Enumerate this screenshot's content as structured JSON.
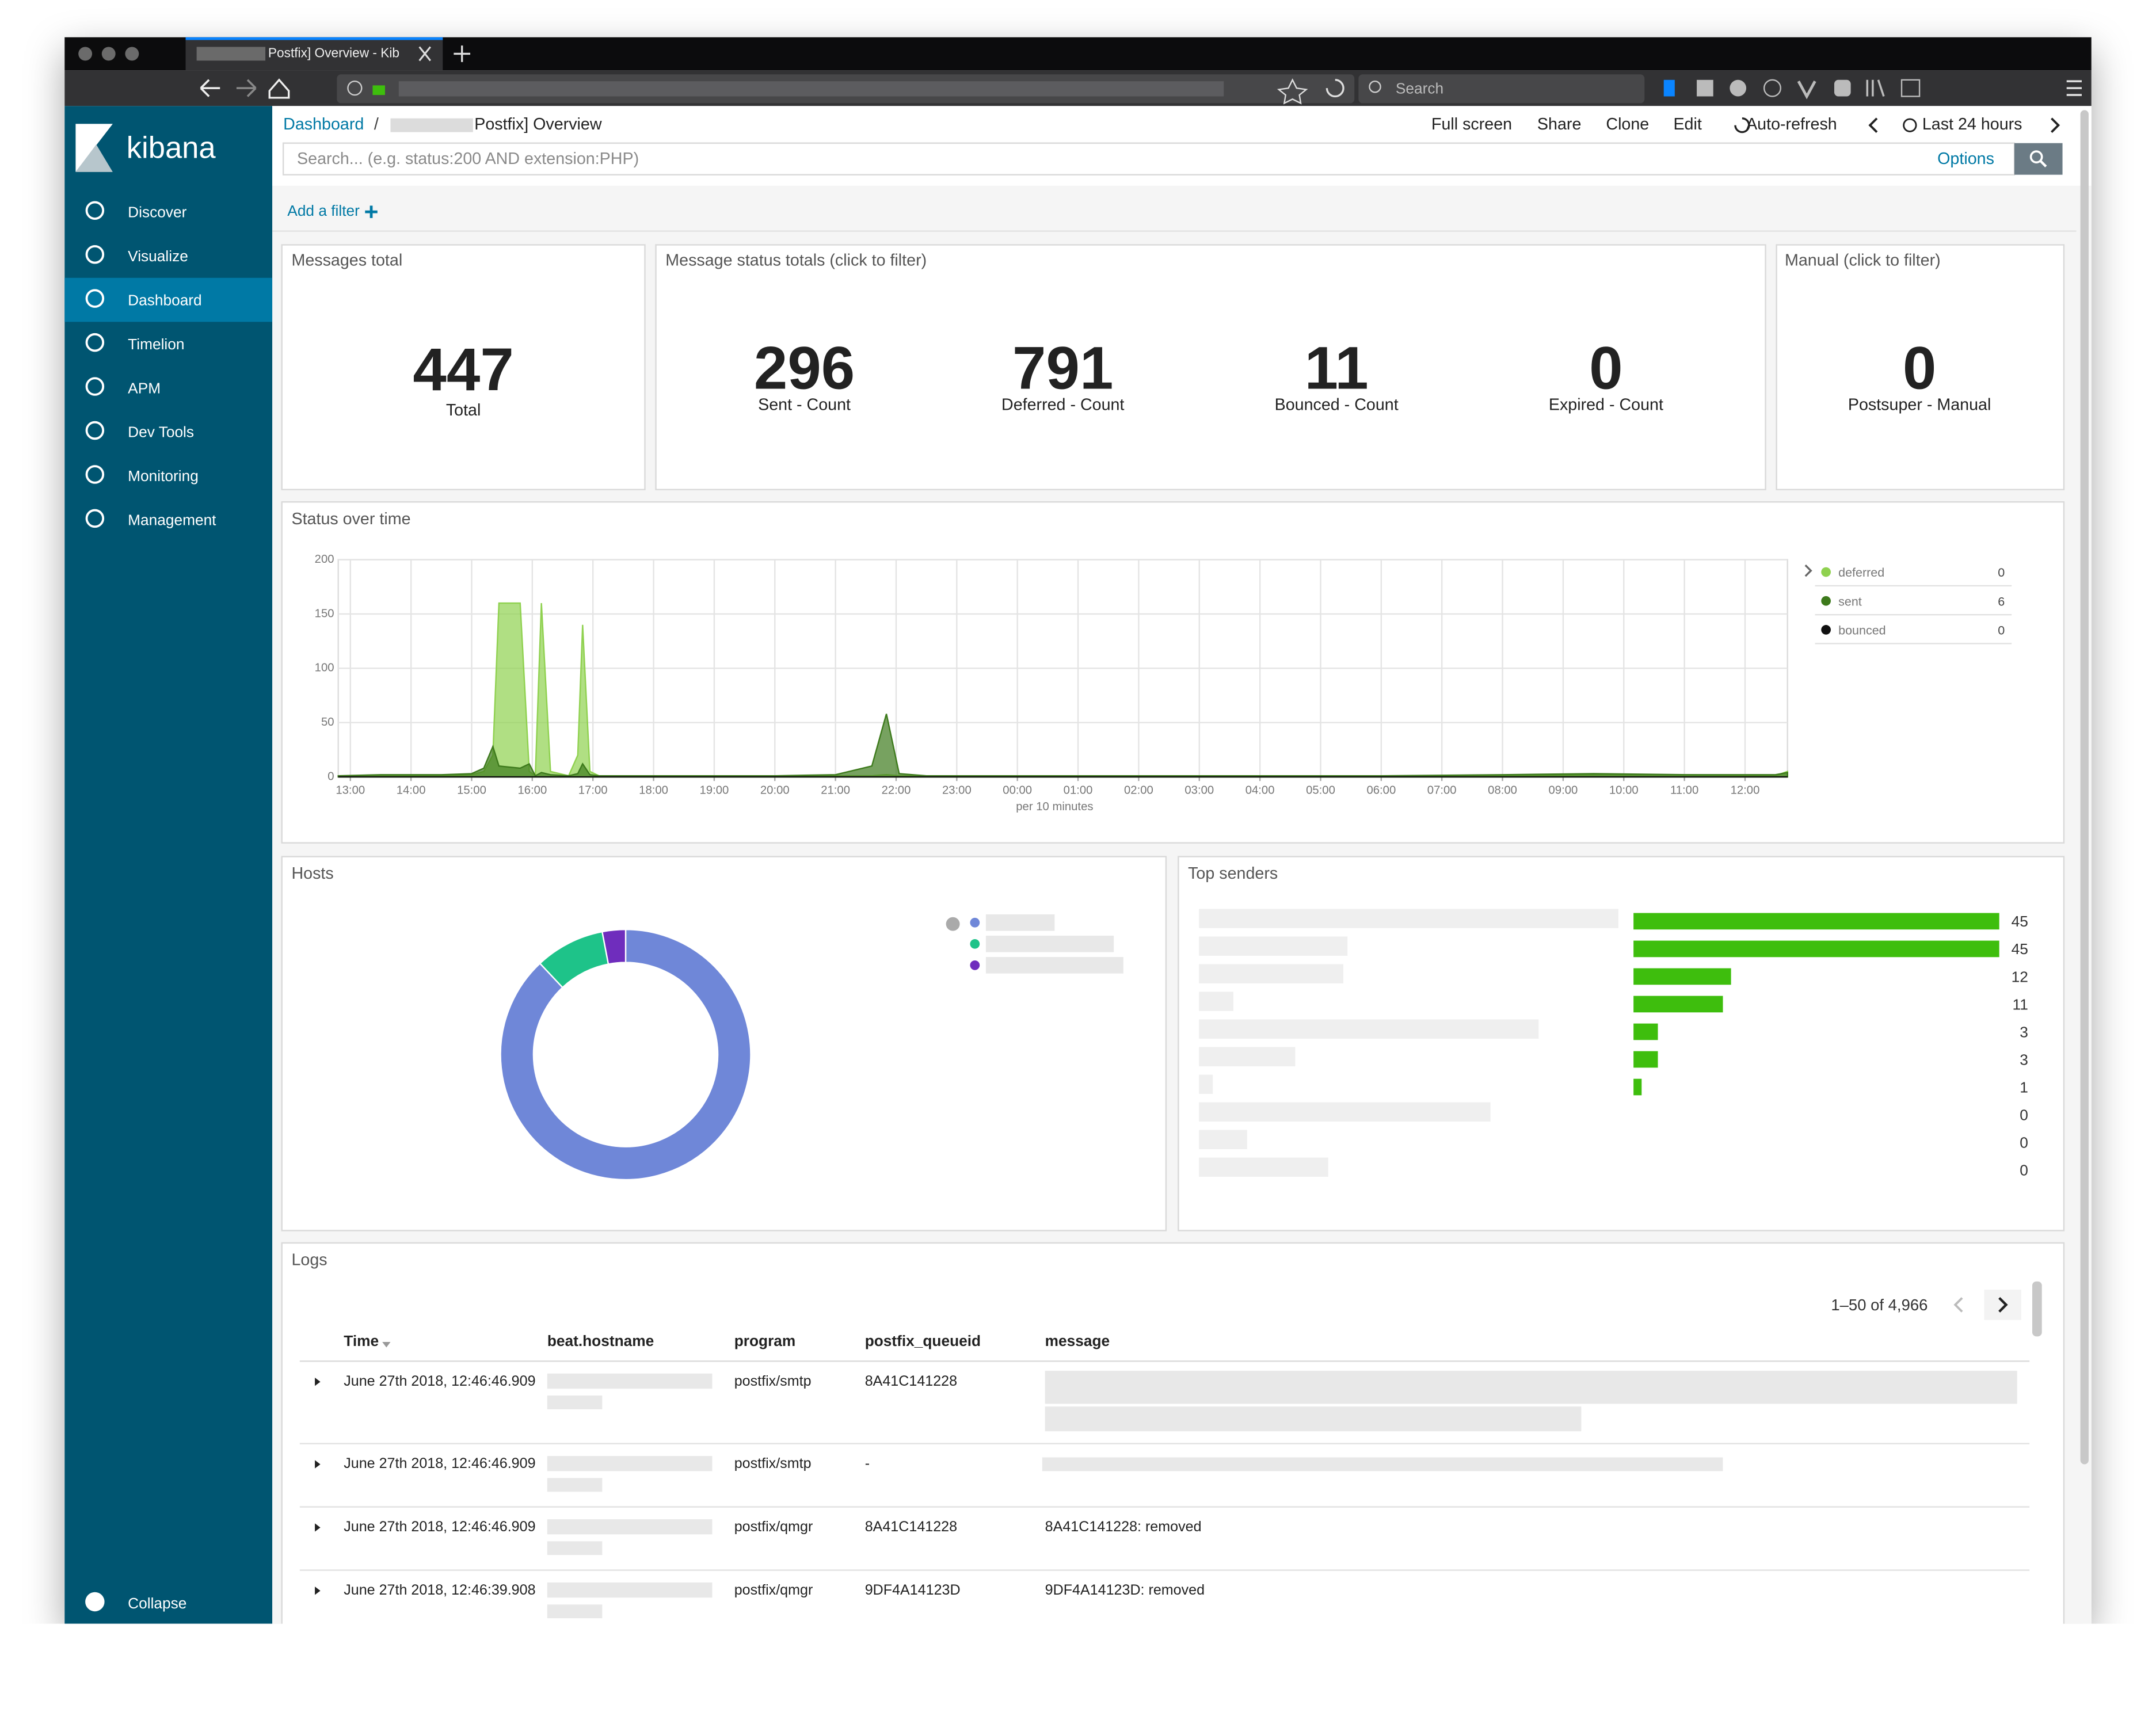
{
  "browser": {
    "tab_title": "Postfix] Overview - Kib",
    "search": "Search"
  },
  "sidebar": {
    "brand": "kibana",
    "items": [
      "Discover",
      "Visualize",
      "Dashboard",
      "Timelion",
      "APM",
      "Dev Tools",
      "Monitoring",
      "Management"
    ],
    "active": 2,
    "collapse": "Collapse"
  },
  "header": {
    "breadcrumb_root": "Dashboard",
    "separator": "/",
    "title": "Postfix] Overview",
    "actions": [
      "Full screen",
      "Share",
      "Clone",
      "Edit",
      "Auto-refresh",
      "Last 24 hours"
    ],
    "search_placeholder": "Search... (e.g. status:200 AND extension:PHP)",
    "options": "Options",
    "add_filter": "Add a filter"
  },
  "panels": {
    "messages_total": {
      "title": "Messages total",
      "metrics": [
        {
          "value": 447,
          "label": "Total"
        }
      ]
    },
    "status_totals": {
      "title": "Message status totals (click to filter)",
      "metrics": [
        {
          "value": 296,
          "label": "Sent - Count"
        },
        {
          "value": 791,
          "label": "Deferred - Count"
        },
        {
          "value": 11,
          "label": "Bounced - Count"
        },
        {
          "value": 0,
          "label": "Expired - Count"
        }
      ]
    },
    "manual": {
      "title": "Manual (click to filter)",
      "metrics": [
        {
          "value": 0,
          "label": "Postsuper - Manual"
        }
      ]
    },
    "status_over_time": {
      "title": "Status over time"
    },
    "hosts": {
      "title": "Hosts"
    },
    "top_senders": {
      "title": "Top senders"
    },
    "logs": {
      "title": "Logs",
      "pagination": "1–50 of 4,966",
      "columns": [
        "Time",
        "beat.hostname",
        "program",
        "postfix_queueid",
        "message"
      ],
      "rows": [
        [
          "June 27th 2018, 12:46:46.909",
          null,
          "postfix/smtp",
          "8A41C141228",
          null
        ],
        [
          "June 27th 2018, 12:46:46.909",
          null,
          "postfix/smtp",
          "-",
          null
        ],
        [
          "June 27th 2018, 12:46:46.909",
          null,
          "postfix/qmgr",
          "8A41C141228",
          "8A41C141228: removed"
        ],
        [
          "June 27th 2018, 12:46:39.908",
          null,
          "postfix/qmgr",
          "9DF4A14123D",
          "9DF4A14123D: removed"
        ]
      ]
    }
  },
  "status_chart": {
    "type": "area",
    "xlabel": "per 10 minutes",
    "xlim": [
      12.8,
      36.7
    ],
    "xticks": [
      {
        "value": 13,
        "label": "13:00"
      },
      {
        "value": 14,
        "label": "14:00"
      },
      {
        "value": 15,
        "label": "15:00"
      },
      {
        "value": 16,
        "label": "16:00"
      },
      {
        "value": 17,
        "label": "17:00"
      },
      {
        "value": 18,
        "label": "18:00"
      },
      {
        "value": 19,
        "label": "19:00"
      },
      {
        "value": 20,
        "label": "20:00"
      },
      {
        "value": 21,
        "label": "21:00"
      },
      {
        "value": 22,
        "label": "22:00"
      },
      {
        "value": 23,
        "label": "23:00"
      },
      {
        "value": 24,
        "label": "00:00"
      },
      {
        "value": 25,
        "label": "01:00"
      },
      {
        "value": 26,
        "label": "02:00"
      },
      {
        "value": 27,
        "label": "03:00"
      },
      {
        "value": 28,
        "label": "04:00"
      },
      {
        "value": 29,
        "label": "05:00"
      },
      {
        "value": 30,
        "label": "06:00"
      },
      {
        "value": 31,
        "label": "07:00"
      },
      {
        "value": 32,
        "label": "08:00"
      },
      {
        "value": 33,
        "label": "09:00"
      },
      {
        "value": 34,
        "label": "10:00"
      },
      {
        "value": 35,
        "label": "11:00"
      },
      {
        "value": 36,
        "label": "12:00"
      }
    ],
    "ylim": [
      0,
      200
    ],
    "yticks": [
      0,
      50,
      100,
      150,
      200
    ],
    "grid": true,
    "legend": "right",
    "x": [
      12.8,
      13.5,
      14.5,
      15.0,
      15.2,
      15.35,
      15.45,
      15.8,
      15.95,
      16.05,
      16.15,
      16.3,
      16.6,
      16.75,
      16.83,
      16.95,
      17.1,
      18,
      19,
      20,
      21,
      21.6,
      21.84,
      22.05,
      22.5,
      24,
      27,
      30,
      32,
      33.5,
      35,
      36.5,
      36.7
    ],
    "series": [
      {
        "name": "deferred",
        "color": "#8fd14f",
        "legend_value": 0,
        "values": [
          0,
          1,
          1,
          2,
          5,
          20,
          160,
          160,
          5,
          1,
          160,
          5,
          1,
          20,
          140,
          5,
          1,
          1,
          1,
          1,
          1,
          1,
          2,
          1,
          1,
          1,
          1,
          1,
          1,
          2,
          2,
          1,
          5
        ]
      },
      {
        "name": "sent",
        "color": "#3d7a1c",
        "legend_value": 6,
        "values": [
          1,
          2,
          2,
          3,
          8,
          28,
          10,
          8,
          12,
          1,
          4,
          2,
          1,
          3,
          12,
          2,
          1,
          1,
          1,
          1,
          2,
          10,
          58,
          3,
          1,
          1,
          1,
          1,
          2,
          3,
          2,
          2,
          4
        ]
      },
      {
        "name": "bounced",
        "color": "#111111",
        "legend_value": 0,
        "values": [
          0,
          0,
          0,
          0,
          0,
          0,
          0,
          0,
          0,
          0,
          0,
          0,
          0,
          0,
          0,
          0,
          0,
          0,
          0,
          0,
          0,
          0,
          0,
          0,
          0,
          0,
          0,
          0,
          0,
          0,
          0,
          0,
          0
        ]
      }
    ]
  },
  "hosts_chart": {
    "type": "donut",
    "categories": [
      null,
      null,
      null
    ],
    "values": [
      88,
      9,
      3
    ],
    "colors": [
      "#6f87d8",
      "#1ec389",
      "#6f2dbd"
    ]
  },
  "senders_chart": {
    "type": "hbar",
    "categories": [
      null,
      null,
      null,
      null,
      null,
      null,
      null,
      null,
      null,
      null
    ],
    "values": [
      45,
      45,
      12,
      11,
      3,
      3,
      1,
      0,
      0,
      0
    ],
    "xlim": [
      0,
      45
    ],
    "color": "#3ebe0d"
  }
}
